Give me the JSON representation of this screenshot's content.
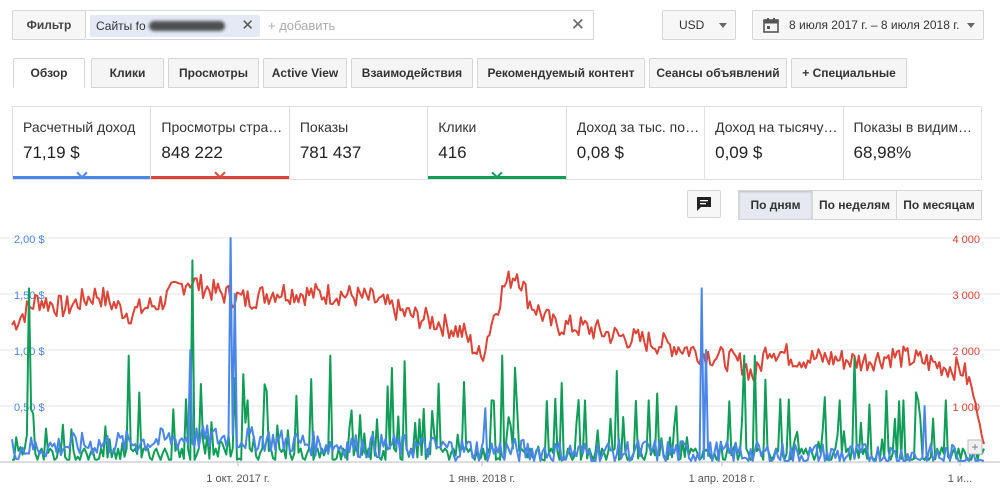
{
  "topbar": {
    "filter_label": "Фильтр",
    "chip_label": "Сайты fo",
    "chip_close": "✕",
    "add_placeholder": "+ добавить",
    "clear": "✕",
    "currency": "USD",
    "date_range": "8 июля 2017 г. – 8 июля 2018 г."
  },
  "tabs": [
    {
      "label": "Обзор"
    },
    {
      "label": "Клики"
    },
    {
      "label": "Просмотры"
    },
    {
      "label": "Active View"
    },
    {
      "label": "Взаимодействия"
    },
    {
      "label": "Рекомендуемый контент"
    },
    {
      "label": "Сеансы объявлений"
    },
    {
      "label": "+  Специальные"
    }
  ],
  "metrics": [
    {
      "label": "Расчетный доход",
      "value": "71,19 $",
      "color": "#4a86e8"
    },
    {
      "label": "Просмотры страниц",
      "value": "848 222",
      "color": "#db4437"
    },
    {
      "label": "Показы",
      "value": "781 437",
      "color": ""
    },
    {
      "label": "Клики",
      "value": "416",
      "color": "#0f9d58"
    },
    {
      "label": "Доход за тыс. показов",
      "value": "0,08 $",
      "color": ""
    },
    {
      "label": "Доход на тысячу просмотров",
      "value": "0,09 $",
      "color": ""
    },
    {
      "label": "Показы в видимой области",
      "value": "68,98%",
      "color": ""
    }
  ],
  "granularity": {
    "by_day": "По дням",
    "by_week": "По неделям",
    "by_month": "По месяцам",
    "comment_icon": "comment-icon"
  },
  "chart_data": {
    "type": "line",
    "x_ticks": [
      "1 окт. 2017 г.",
      "1 янв. 2018 г.",
      "1 апр. 2018 г.",
      "1 и..."
    ],
    "y_left_ticks": [
      "0,50 $",
      "1,00 $",
      "1,50 $",
      "2,00 $"
    ],
    "y_right_ticks": [
      "1 000",
      "2 000",
      "3 000",
      "4 000"
    ],
    "ylim_left": [
      0,
      2
    ],
    "ylim_right": [
      0,
      4000
    ],
    "grid": true,
    "series": [
      {
        "axis": "right",
        "color": "#db4437",
        "keys": [
          [
            0,
            2450
          ],
          [
            12,
            2900
          ],
          [
            25,
            2750
          ],
          [
            40,
            3000
          ],
          [
            55,
            2650
          ],
          [
            70,
            2850
          ],
          [
            83,
            3250
          ],
          [
            95,
            3050
          ],
          [
            110,
            2900
          ],
          [
            125,
            3050
          ],
          [
            140,
            3000
          ],
          [
            155,
            3000
          ],
          [
            170,
            2900
          ],
          [
            185,
            2650
          ],
          [
            200,
            2500
          ],
          [
            213,
            2300
          ],
          [
            221,
            1850
          ],
          [
            226,
            2500
          ],
          [
            232,
            3150
          ],
          [
            238,
            3400
          ],
          [
            244,
            2850
          ],
          [
            255,
            2450
          ],
          [
            270,
            2400
          ],
          [
            285,
            2250
          ],
          [
            300,
            2150
          ],
          [
            315,
            2050
          ],
          [
            330,
            1900
          ],
          [
            345,
            1750
          ],
          [
            350,
            1500
          ],
          [
            356,
            2050
          ],
          [
            370,
            1850
          ],
          [
            385,
            1850
          ],
          [
            400,
            1800
          ],
          [
            415,
            1900
          ],
          [
            430,
            1800
          ],
          [
            440,
            1700
          ],
          [
            448,
            1650
          ],
          [
            452,
            1350
          ],
          [
            456,
            700
          ],
          [
            458,
            300
          ]
        ]
      },
      {
        "axis": "left",
        "color": "#4a86e8",
        "keys": [
          [
            0,
            0.12
          ],
          [
            30,
            0.15
          ],
          [
            60,
            0.18
          ],
          [
            90,
            0.22
          ],
          [
            120,
            0.2
          ],
          [
            150,
            0.15
          ],
          [
            180,
            0.14
          ],
          [
            210,
            0.12
          ],
          [
            240,
            0.1
          ],
          [
            270,
            0.08
          ],
          [
            300,
            0.1
          ],
          [
            330,
            0.08
          ],
          [
            360,
            0.07
          ],
          [
            390,
            0.06
          ],
          [
            420,
            0.06
          ],
          [
            450,
            0.05
          ],
          [
            458,
            0.02
          ]
        ],
        "spikes": [
          [
            84,
            1.0
          ],
          [
            103,
            2.0
          ],
          [
            105,
            1.5
          ],
          [
            223,
            0.48
          ],
          [
            325,
            1.55
          ],
          [
            327,
            1.0
          ],
          [
            430,
            0.5
          ]
        ]
      },
      {
        "axis": "left",
        "color": "#0f9d58",
        "keys": [
          [
            0,
            0.1
          ],
          [
            458,
            0.1
          ]
        ],
        "spikes": [
          [
            8,
            1.55
          ],
          [
            55,
            0.95
          ],
          [
            85,
            1.8
          ],
          [
            105,
            0.75
          ],
          [
            150,
            0.95
          ],
          [
            185,
            0.9
          ],
          [
            226,
            0.55
          ],
          [
            231,
            0.95
          ],
          [
            270,
            0.55
          ],
          [
            300,
            0.55
          ],
          [
            345,
            0.95
          ],
          [
            350,
            0.95
          ],
          [
            390,
            0.55
          ],
          [
            420,
            0.55
          ],
          [
            440,
            0.55
          ]
        ]
      }
    ]
  }
}
